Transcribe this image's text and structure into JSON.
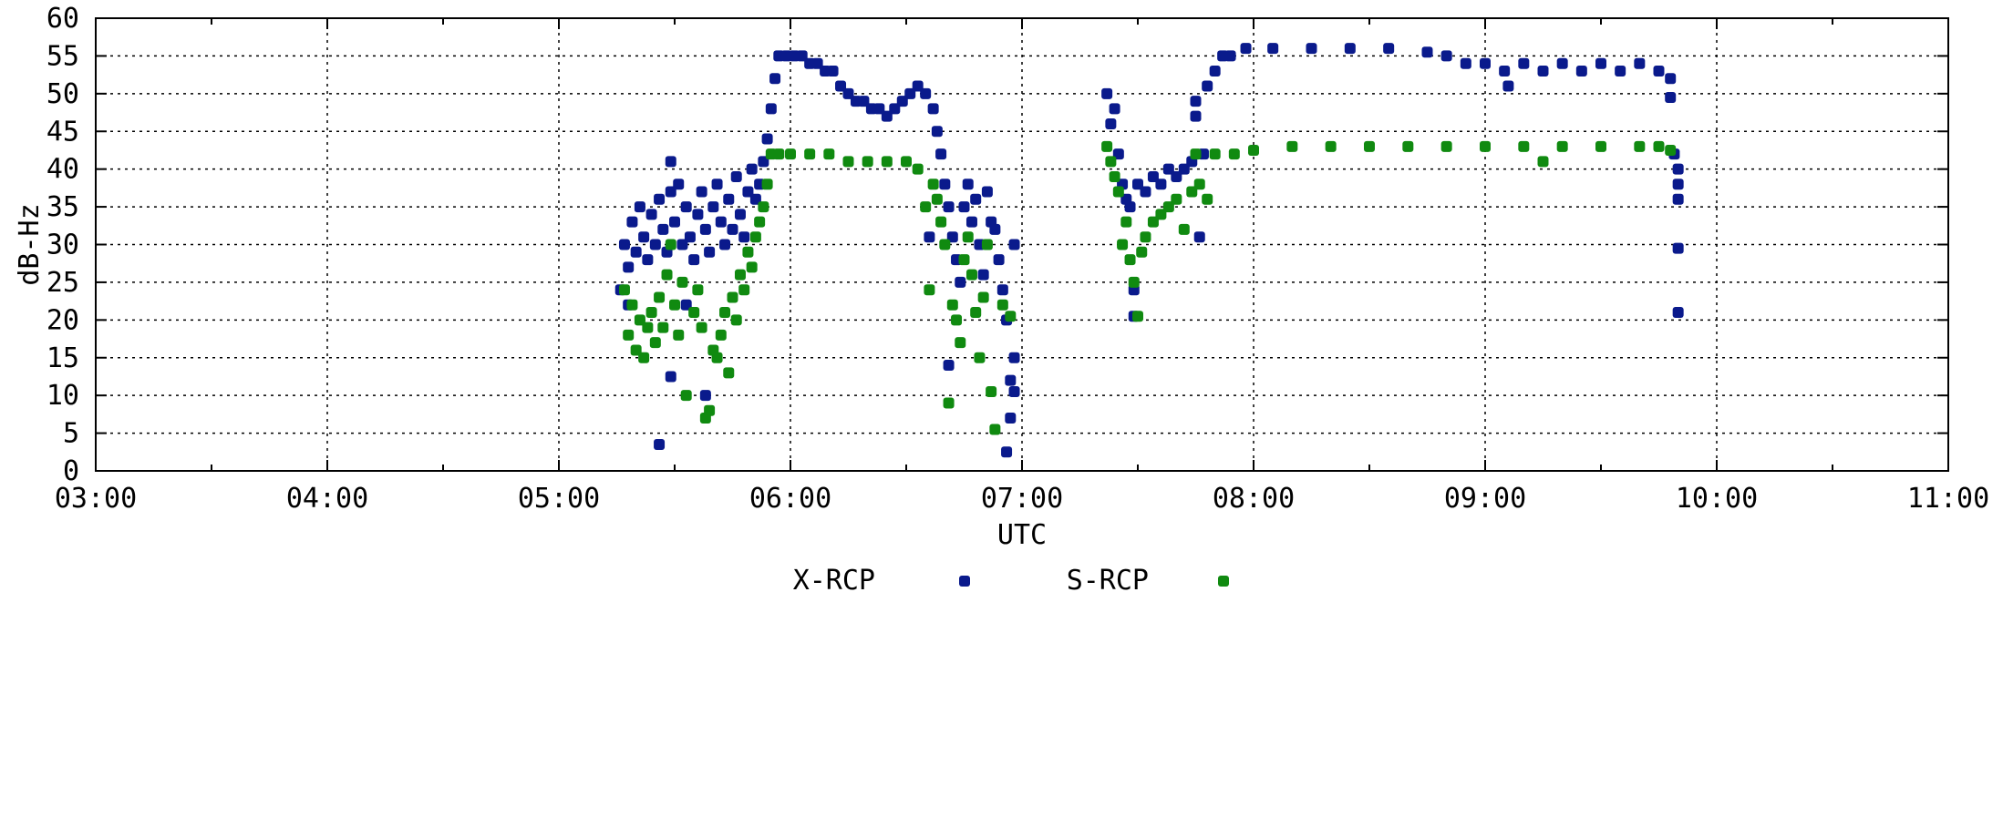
{
  "chart_data": {
    "type": "scatter",
    "title": "",
    "xlabel": "UTC",
    "ylabel": "dB-Hz",
    "xlim": [
      "03:00",
      "11:00"
    ],
    "ylim": [
      0,
      60
    ],
    "x_ticks": [
      "03:00",
      "04:00",
      "05:00",
      "06:00",
      "07:00",
      "08:00",
      "09:00",
      "10:00",
      "11:00"
    ],
    "y_ticks": [
      0,
      5,
      10,
      15,
      20,
      25,
      30,
      35,
      40,
      45,
      50,
      55,
      60
    ],
    "grid": true,
    "legend_position": "bottom",
    "series": [
      {
        "name": "X-RCP",
        "color": "#0a1a8c",
        "points": [
          [
            "05:16",
            24
          ],
          [
            "05:17",
            30
          ],
          [
            "05:18",
            27
          ],
          [
            "05:19",
            33
          ],
          [
            "05:20",
            29
          ],
          [
            "05:21",
            35
          ],
          [
            "05:22",
            31
          ],
          [
            "05:23",
            28
          ],
          [
            "05:24",
            34
          ],
          [
            "05:25",
            30
          ],
          [
            "05:26",
            36
          ],
          [
            "05:27",
            32
          ],
          [
            "05:28",
            29
          ],
          [
            "05:29",
            37
          ],
          [
            "05:30",
            33
          ],
          [
            "05:31",
            38
          ],
          [
            "05:32",
            30
          ],
          [
            "05:33",
            35
          ],
          [
            "05:34",
            31
          ],
          [
            "05:35",
            28
          ],
          [
            "05:36",
            34
          ],
          [
            "05:37",
            37
          ],
          [
            "05:38",
            32
          ],
          [
            "05:39",
            29
          ],
          [
            "05:40",
            35
          ],
          [
            "05:41",
            38
          ],
          [
            "05:42",
            33
          ],
          [
            "05:43",
            30
          ],
          [
            "05:44",
            36
          ],
          [
            "05:45",
            32
          ],
          [
            "05:46",
            39
          ],
          [
            "05:47",
            34
          ],
          [
            "05:48",
            31
          ],
          [
            "05:49",
            37
          ],
          [
            "05:50",
            40
          ],
          [
            "05:51",
            36
          ],
          [
            "05:52",
            38
          ],
          [
            "05:53",
            41
          ],
          [
            "05:54",
            44
          ],
          [
            "05:55",
            48
          ],
          [
            "05:26",
            3.5
          ],
          [
            "05:29",
            41
          ],
          [
            "05:29",
            12.5
          ],
          [
            "05:38",
            10
          ],
          [
            "05:33",
            22
          ],
          [
            "05:18",
            22
          ],
          [
            "05:56",
            52
          ],
          [
            "05:57",
            55
          ],
          [
            "05:59",
            55
          ],
          [
            "06:01",
            55
          ],
          [
            "06:03",
            55
          ],
          [
            "06:05",
            54
          ],
          [
            "06:07",
            54
          ],
          [
            "06:09",
            53
          ],
          [
            "06:11",
            53
          ],
          [
            "06:13",
            51
          ],
          [
            "06:15",
            50
          ],
          [
            "06:17",
            49
          ],
          [
            "06:19",
            49
          ],
          [
            "06:21",
            48
          ],
          [
            "06:23",
            48
          ],
          [
            "06:25",
            47
          ],
          [
            "06:27",
            48
          ],
          [
            "06:29",
            49
          ],
          [
            "06:31",
            50
          ],
          [
            "06:33",
            51
          ],
          [
            "06:35",
            50
          ],
          [
            "06:37",
            48
          ],
          [
            "06:38",
            45
          ],
          [
            "06:39",
            42
          ],
          [
            "06:40",
            38
          ],
          [
            "06:41",
            35
          ],
          [
            "06:42",
            31
          ],
          [
            "06:43",
            28
          ],
          [
            "06:44",
            25
          ],
          [
            "06:45",
            35
          ],
          [
            "06:46",
            38
          ],
          [
            "06:47",
            33
          ],
          [
            "06:48",
            36
          ],
          [
            "06:49",
            30
          ],
          [
            "06:50",
            26
          ],
          [
            "06:41",
            14
          ],
          [
            "06:36",
            31
          ],
          [
            "06:51",
            37
          ],
          [
            "06:52",
            33
          ],
          [
            "06:53",
            32
          ],
          [
            "06:54",
            28
          ],
          [
            "06:55",
            24
          ],
          [
            "06:56",
            20
          ],
          [
            "06:56",
            2.5
          ],
          [
            "06:57",
            7
          ],
          [
            "06:57",
            12
          ],
          [
            "06:58",
            15
          ],
          [
            "06:58",
            10.5
          ],
          [
            "06:58",
            30
          ],
          [
            "07:22",
            50
          ],
          [
            "07:23",
            46
          ],
          [
            "07:24",
            48
          ],
          [
            "07:25",
            42
          ],
          [
            "07:26",
            38
          ],
          [
            "07:27",
            36
          ],
          [
            "07:28",
            35
          ],
          [
            "07:29",
            24
          ],
          [
            "07:29",
            20.5
          ],
          [
            "07:30",
            38
          ],
          [
            "07:32",
            37
          ],
          [
            "07:34",
            39
          ],
          [
            "07:36",
            38
          ],
          [
            "07:38",
            40
          ],
          [
            "07:40",
            39
          ],
          [
            "07:42",
            40
          ],
          [
            "07:44",
            41
          ],
          [
            "07:45",
            47
          ],
          [
            "07:45",
            49
          ],
          [
            "07:46",
            31
          ],
          [
            "07:47",
            42
          ],
          [
            "07:48",
            51
          ],
          [
            "07:50",
            53
          ],
          [
            "07:52",
            55
          ],
          [
            "07:54",
            55
          ],
          [
            "07:58",
            56
          ],
          [
            "08:05",
            56
          ],
          [
            "08:15",
            56
          ],
          [
            "08:25",
            56
          ],
          [
            "08:35",
            56
          ],
          [
            "08:45",
            55.5
          ],
          [
            "08:50",
            55
          ],
          [
            "08:55",
            54
          ],
          [
            "09:00",
            54
          ],
          [
            "09:05",
            53
          ],
          [
            "09:06",
            51
          ],
          [
            "09:10",
            54
          ],
          [
            "09:15",
            53
          ],
          [
            "09:20",
            54
          ],
          [
            "09:25",
            53
          ],
          [
            "09:30",
            54
          ],
          [
            "09:35",
            53
          ],
          [
            "09:40",
            54
          ],
          [
            "09:45",
            53
          ],
          [
            "09:48",
            52
          ],
          [
            "09:48",
            49.5
          ],
          [
            "09:49",
            42
          ],
          [
            "09:50",
            40
          ],
          [
            "09:50",
            38
          ],
          [
            "09:50",
            36
          ],
          [
            "09:50",
            29.5
          ],
          [
            "09:50",
            21
          ]
        ]
      },
      {
        "name": "S-RCP",
        "color": "#108a10",
        "points": [
          [
            "05:17",
            24
          ],
          [
            "05:18",
            18
          ],
          [
            "05:19",
            22
          ],
          [
            "05:20",
            16
          ],
          [
            "05:21",
            20
          ],
          [
            "05:22",
            15
          ],
          [
            "05:23",
            19
          ],
          [
            "05:24",
            21
          ],
          [
            "05:25",
            17
          ],
          [
            "05:26",
            23
          ],
          [
            "05:27",
            19
          ],
          [
            "05:28",
            26
          ],
          [
            "05:29",
            30
          ],
          [
            "05:30",
            22
          ],
          [
            "05:31",
            18
          ],
          [
            "05:32",
            25
          ],
          [
            "05:33",
            10
          ],
          [
            "05:35",
            21
          ],
          [
            "05:36",
            24
          ],
          [
            "05:37",
            19
          ],
          [
            "05:38",
            7
          ],
          [
            "05:39",
            8
          ],
          [
            "05:40",
            16
          ],
          [
            "05:41",
            15
          ],
          [
            "05:42",
            18
          ],
          [
            "05:43",
            21
          ],
          [
            "05:44",
            13
          ],
          [
            "05:45",
            23
          ],
          [
            "05:46",
            20
          ],
          [
            "05:47",
            26
          ],
          [
            "05:48",
            24
          ],
          [
            "05:49",
            29
          ],
          [
            "05:50",
            27
          ],
          [
            "05:51",
            31
          ],
          [
            "05:52",
            33
          ],
          [
            "05:53",
            35
          ],
          [
            "05:54",
            38
          ],
          [
            "05:55",
            42
          ],
          [
            "05:57",
            42
          ],
          [
            "06:00",
            42
          ],
          [
            "06:05",
            42
          ],
          [
            "06:10",
            42
          ],
          [
            "06:15",
            41
          ],
          [
            "06:20",
            41
          ],
          [
            "06:25",
            41
          ],
          [
            "06:30",
            41
          ],
          [
            "06:33",
            40
          ],
          [
            "06:35",
            35
          ],
          [
            "06:36",
            24
          ],
          [
            "06:37",
            38
          ],
          [
            "06:38",
            36
          ],
          [
            "06:39",
            33
          ],
          [
            "06:40",
            30
          ],
          [
            "06:41",
            9
          ],
          [
            "06:42",
            22
          ],
          [
            "06:43",
            20
          ],
          [
            "06:44",
            17
          ],
          [
            "06:45",
            28
          ],
          [
            "06:46",
            31
          ],
          [
            "06:47",
            26
          ],
          [
            "06:48",
            21
          ],
          [
            "06:49",
            15
          ],
          [
            "06:50",
            23
          ],
          [
            "06:51",
            30
          ],
          [
            "06:52",
            10.5
          ],
          [
            "06:53",
            5.5
          ],
          [
            "06:55",
            22
          ],
          [
            "06:57",
            20.5
          ],
          [
            "07:22",
            43
          ],
          [
            "07:23",
            41
          ],
          [
            "07:24",
            39
          ],
          [
            "07:25",
            37
          ],
          [
            "07:26",
            30
          ],
          [
            "07:27",
            33
          ],
          [
            "07:28",
            28
          ],
          [
            "07:29",
            25
          ],
          [
            "07:30",
            20.5
          ],
          [
            "07:31",
            29
          ],
          [
            "07:32",
            31
          ],
          [
            "07:34",
            33
          ],
          [
            "07:36",
            34
          ],
          [
            "07:38",
            35
          ],
          [
            "07:40",
            36
          ],
          [
            "07:42",
            32
          ],
          [
            "07:44",
            37
          ],
          [
            "07:45",
            42
          ],
          [
            "07:46",
            38
          ],
          [
            "07:48",
            36
          ],
          [
            "07:50",
            42
          ],
          [
            "07:55",
            42
          ],
          [
            "08:00",
            42.5
          ],
          [
            "08:10",
            43
          ],
          [
            "08:20",
            43
          ],
          [
            "08:30",
            43
          ],
          [
            "08:40",
            43
          ],
          [
            "08:50",
            43
          ],
          [
            "09:00",
            43
          ],
          [
            "09:10",
            43
          ],
          [
            "09:15",
            41
          ],
          [
            "09:20",
            43
          ],
          [
            "09:30",
            43
          ],
          [
            "09:40",
            43
          ],
          [
            "09:45",
            43
          ],
          [
            "09:48",
            42.5
          ]
        ]
      }
    ]
  }
}
